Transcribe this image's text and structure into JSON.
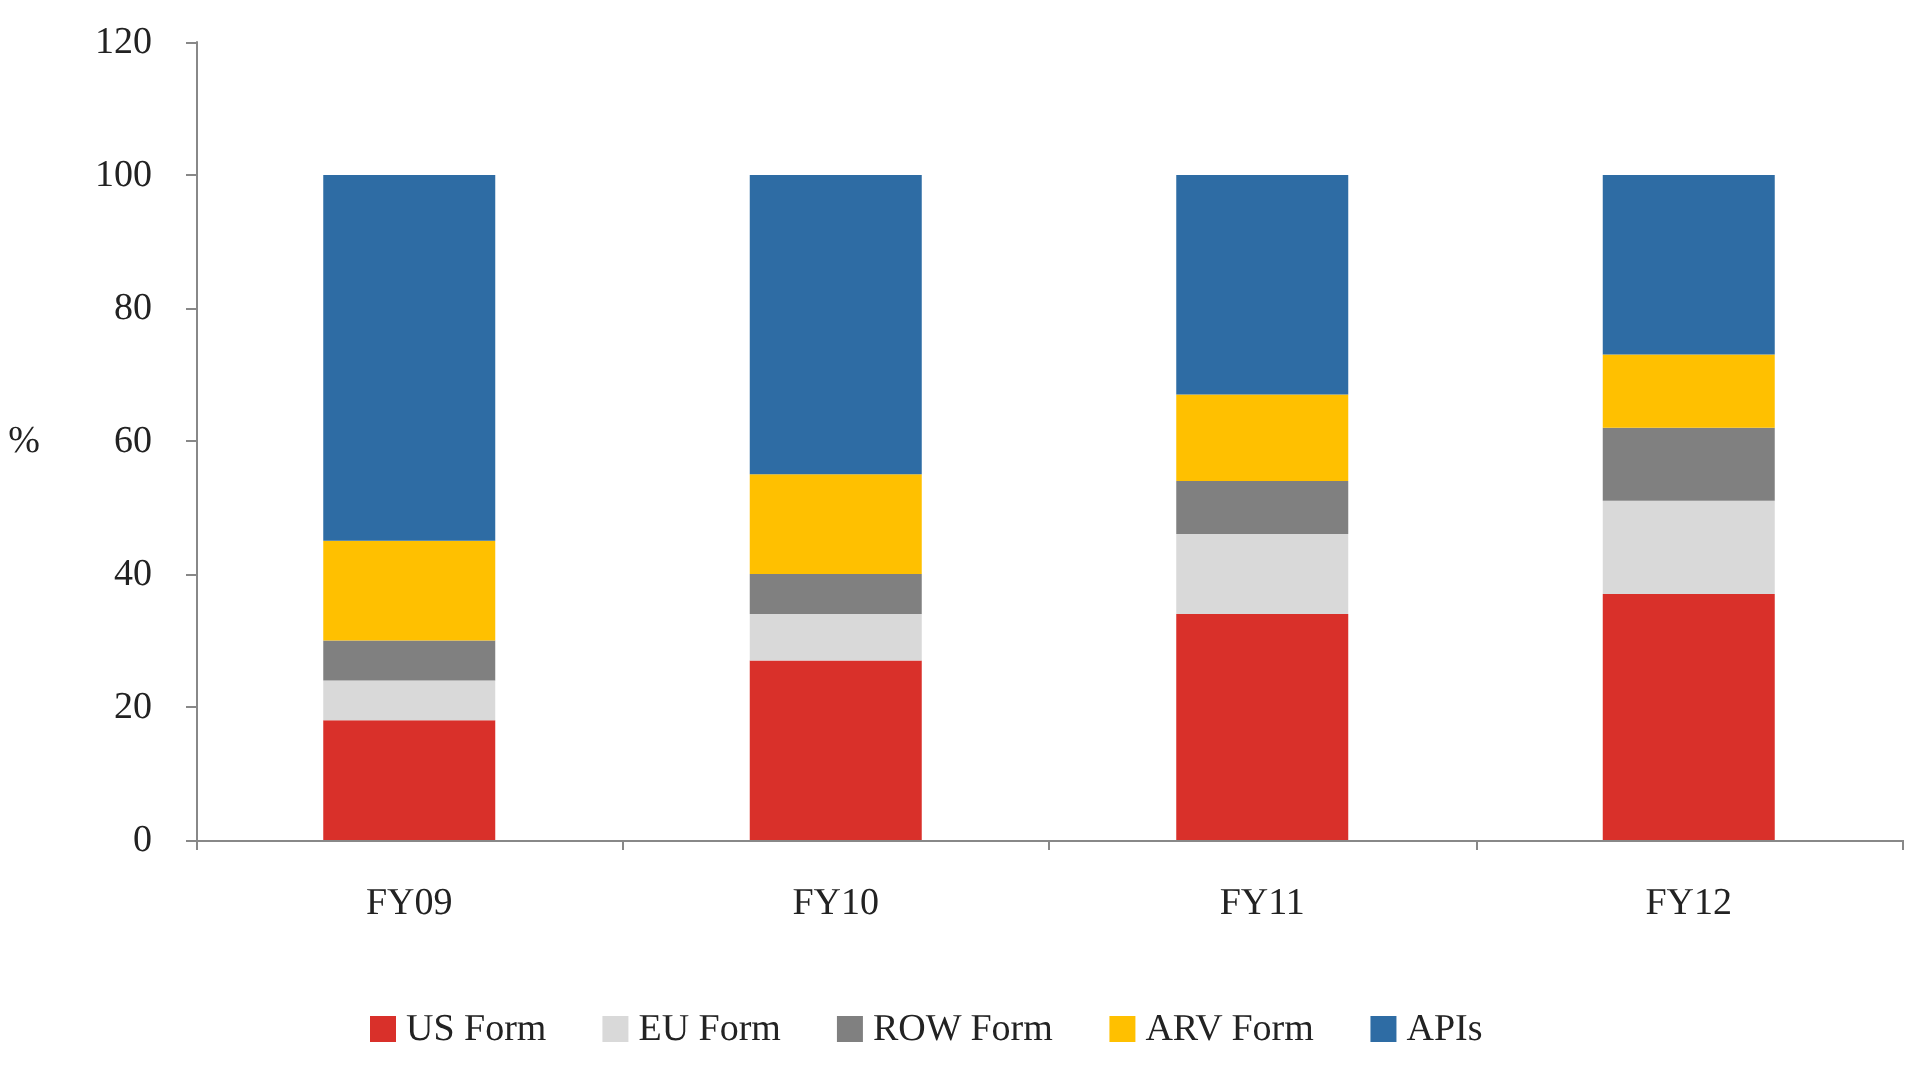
{
  "chart_data": {
    "type": "bar",
    "stacked": true,
    "ylabel": "%",
    "categories": [
      "FY09",
      "FY10",
      "FY11",
      "FY12"
    ],
    "series": [
      {
        "name": "US Form",
        "color": "#d9302a",
        "values": [
          18,
          27,
          34,
          37
        ]
      },
      {
        "name": "EU Form",
        "color": "#d9d9d9",
        "values": [
          6,
          7,
          12,
          14
        ]
      },
      {
        "name": "ROW Form",
        "color": "#808080",
        "values": [
          6,
          6,
          8,
          11
        ]
      },
      {
        "name": "ARV Form",
        "color": "#ffc000",
        "values": [
          15,
          15,
          13,
          11
        ]
      },
      {
        "name": "APIs",
        "color": "#2e6ca4",
        "values": [
          55,
          45,
          33,
          27
        ]
      }
    ],
    "ylim": [
      0,
      120
    ],
    "yticks": [
      0,
      20,
      40,
      60,
      80,
      100,
      120
    ],
    "grid": false,
    "legend": "bottom"
  }
}
